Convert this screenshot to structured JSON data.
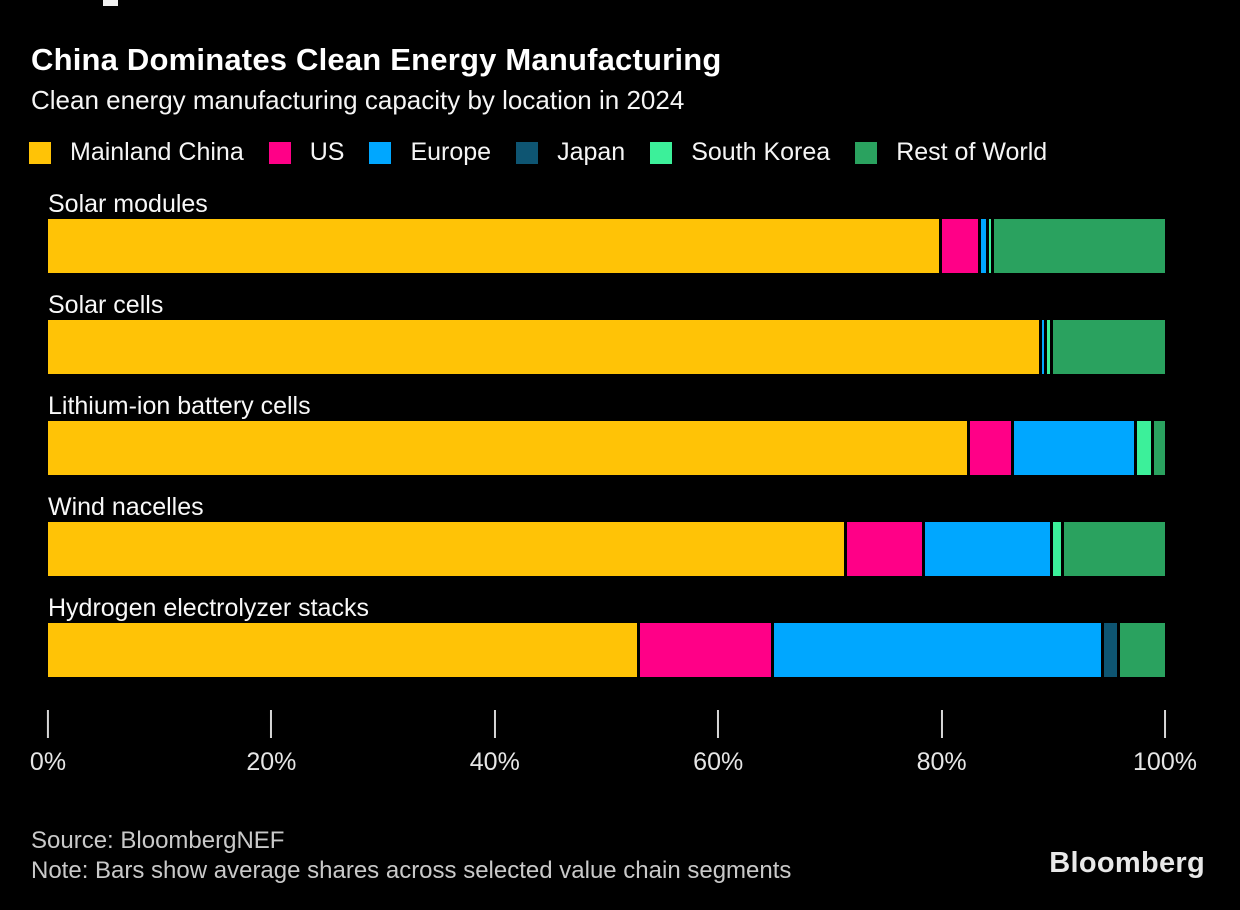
{
  "header": {
    "title": "China Dominates Clean Energy Manufacturing",
    "subtitle": "Clean energy manufacturing capacity by location in 2024"
  },
  "legend": {
    "items": [
      {
        "label": "Mainland China",
        "color": "#FFC306"
      },
      {
        "label": "US",
        "color": "#FF0087"
      },
      {
        "label": "Europe",
        "color": "#00A7FF"
      },
      {
        "label": "Japan",
        "color": "#0E5572"
      },
      {
        "label": "South Korea",
        "color": "#3CF09A"
      },
      {
        "label": "Rest of World",
        "color": "#2AA25F"
      }
    ]
  },
  "chart_data": {
    "type": "bar",
    "orientation": "horizontal",
    "stacked": true,
    "unit": "%",
    "title": "China Dominates Clean Energy Manufacturing",
    "subtitle": "Clean energy manufacturing capacity by location in 2024",
    "categories": [
      "Solar modules",
      "Solar cells",
      "Lithium-ion battery cells",
      "Wind nacelles",
      "Hydrogen electrolyzer stacks"
    ],
    "series": [
      {
        "name": "Mainland China",
        "color": "#FFC306",
        "values": [
          80.0,
          89.0,
          82.5,
          71.5,
          53.0
        ]
      },
      {
        "name": "US",
        "color": "#FF0087",
        "values": [
          3.5,
          0,
          4.0,
          7.0,
          12.0
        ]
      },
      {
        "name": "Europe",
        "color": "#00A7FF",
        "values": [
          0.7,
          0.4,
          11.0,
          11.5,
          29.5
        ]
      },
      {
        "name": "Japan",
        "color": "#0E5572",
        "values": [
          0,
          0,
          0,
          0,
          1.5
        ]
      },
      {
        "name": "South Korea",
        "color": "#3CF09A",
        "values": [
          0.5,
          0.6,
          1.5,
          1.0,
          0
        ]
      },
      {
        "name": "Rest of World",
        "color": "#2AA25F",
        "values": [
          15.3,
          10.0,
          1.0,
          9.0,
          4.0
        ]
      }
    ],
    "x_axis": {
      "range": [
        0,
        100
      ],
      "tick_values": [
        0,
        20,
        40,
        60,
        80,
        100
      ],
      "ticks": [
        "0%",
        "20%",
        "40%",
        "60%",
        "80%",
        "100%"
      ]
    },
    "legend_position": "top",
    "grid": false
  },
  "footer": {
    "source": "Source: BloombergNEF",
    "note": "Note: Bars show average shares across selected value chain segments",
    "logo": "Bloomberg"
  }
}
